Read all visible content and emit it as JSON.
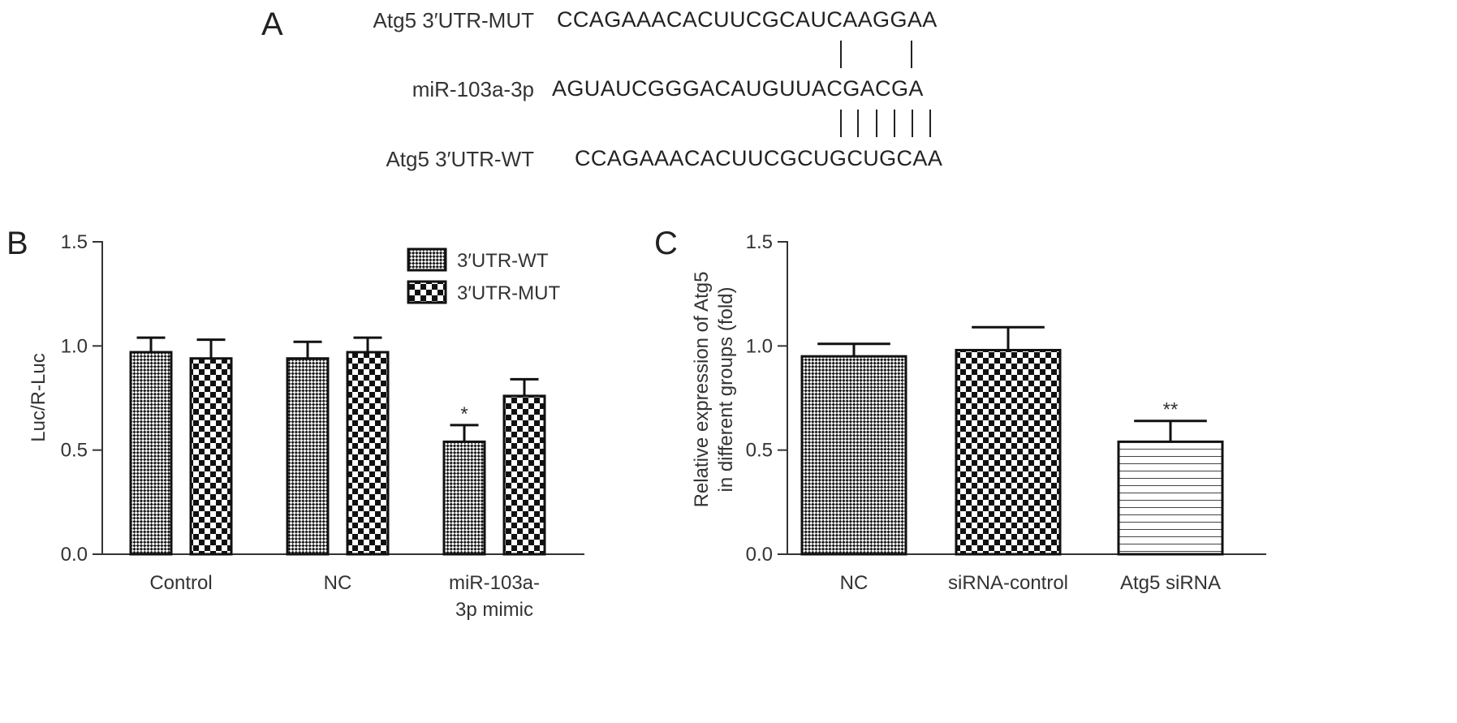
{
  "panel_a": {
    "letter": "A",
    "rows": [
      {
        "label": "Atg5 3′UTR-MUT",
        "sequence": "CCAGAAACACUUCGCAUCAAGGAA"
      },
      {
        "label": "miR-103a-3p",
        "sequence": "AGUAUCGGGACAUGUUACGACGA"
      },
      {
        "label": "Atg5 3′UTR-WT",
        "sequence": "CCAGAAACACUUCGCUGCUGCAA"
      }
    ],
    "top_pairing_count": 2,
    "bottom_pairing_count": 6
  },
  "chart_data": [
    {
      "panel": "B",
      "type": "bar",
      "ylabel": "Luc/R-Luc",
      "ylim": [
        0,
        1.5
      ],
      "yticks": [
        "0.0",
        "0.5",
        "1.0",
        "1.5"
      ],
      "categories": [
        [
          "Control"
        ],
        [
          "NC"
        ],
        [
          "miR-103a-",
          "3p mimic"
        ]
      ],
      "legend_position": "top-right",
      "series": [
        {
          "name": "3′UTR-WT",
          "pattern": "fine-check",
          "values": [
            0.97,
            0.94,
            0.54
          ],
          "errors": [
            0.07,
            0.08,
            0.08
          ]
        },
        {
          "name": "3′UTR-MUT",
          "pattern": "coarse-check",
          "values": [
            0.94,
            0.97,
            0.76
          ],
          "errors": [
            0.09,
            0.07,
            0.08
          ]
        }
      ],
      "annotations": [
        {
          "series": 0,
          "category": 2,
          "text": "*"
        }
      ]
    },
    {
      "panel": "C",
      "type": "bar",
      "ylabel_lines": [
        "Relative expression of Atg5",
        "in different groups (fold)"
      ],
      "ylim": [
        0,
        1.5
      ],
      "yticks": [
        "0.0",
        "0.5",
        "1.0",
        "1.5"
      ],
      "categories": [
        "NC",
        "siRNA-control",
        "Atg5 siRNA"
      ],
      "values": [
        0.95,
        0.98,
        0.54
      ],
      "errors": [
        0.06,
        0.11,
        0.1
      ],
      "patterns": [
        "fine-check",
        "coarse-check",
        "hstripes"
      ],
      "annotations": [
        {
          "category": 2,
          "text": "**"
        }
      ]
    }
  ]
}
